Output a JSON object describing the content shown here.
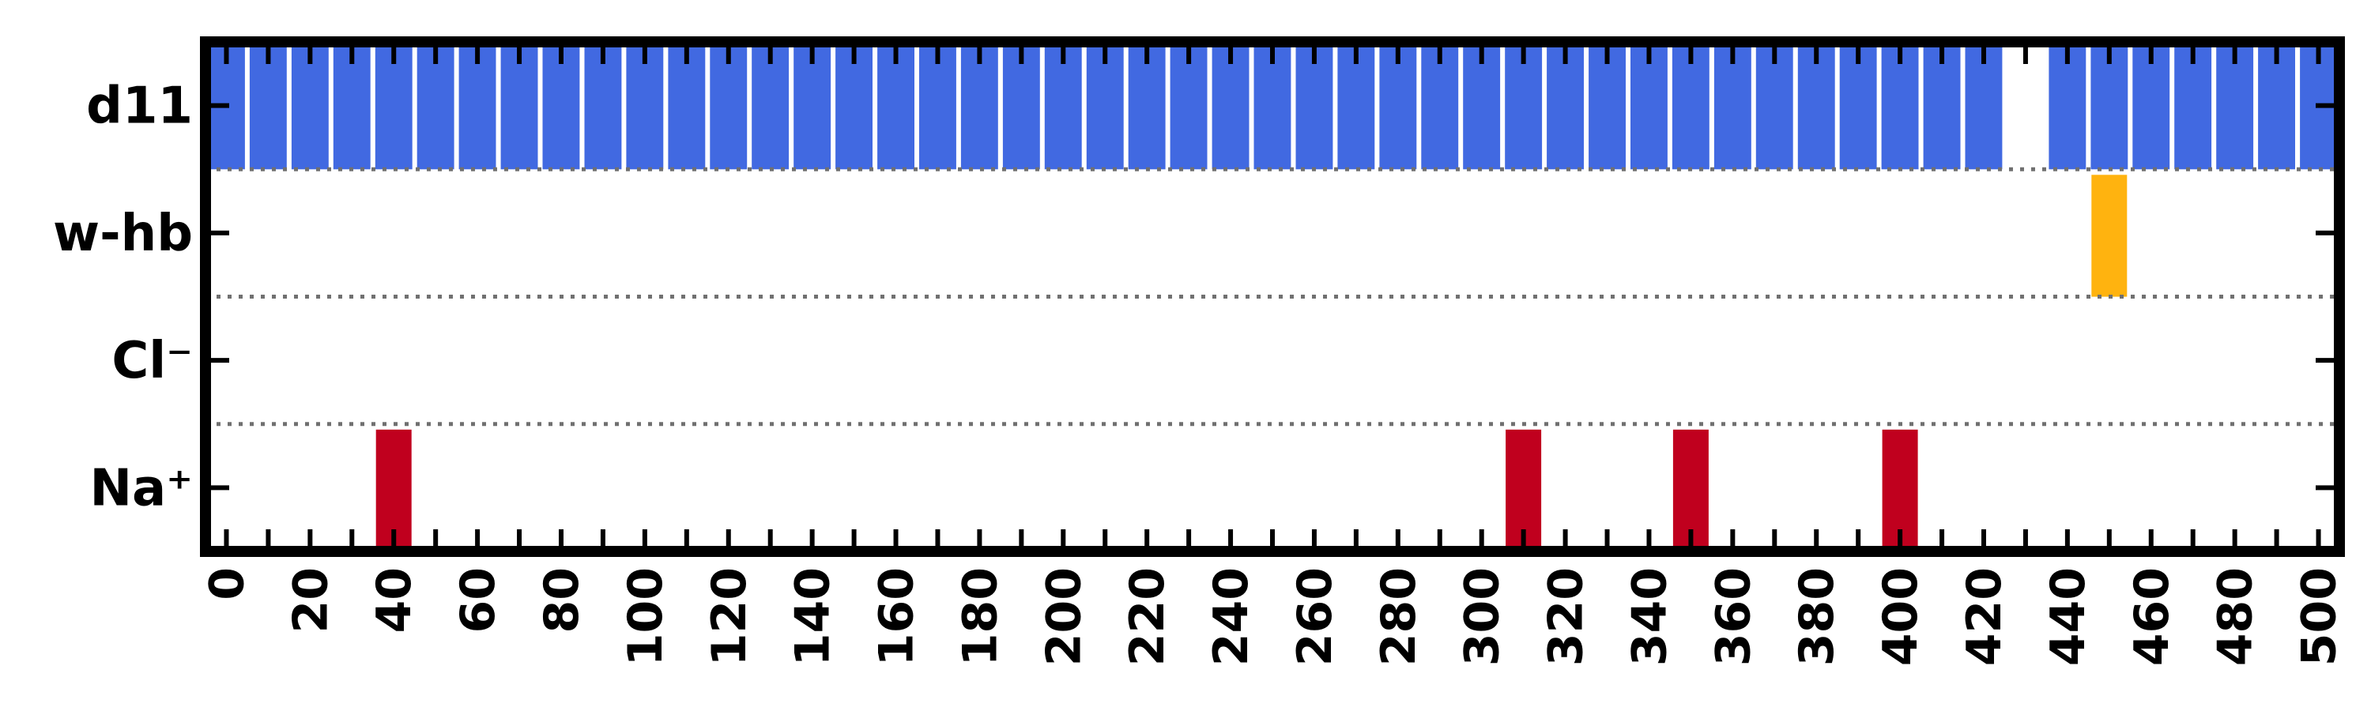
{
  "chart_data": {
    "type": "heatmap",
    "rows": [
      "d11",
      "w-hb",
      "Cl⁻",
      "Na⁺"
    ],
    "xlim": [
      -5,
      505
    ],
    "bin_width": 10,
    "x_ticks": [
      0,
      20,
      40,
      60,
      80,
      100,
      120,
      140,
      160,
      180,
      200,
      220,
      240,
      260,
      280,
      300,
      320,
      340,
      360,
      380,
      400,
      420,
      440,
      460,
      480,
      500
    ],
    "x_ticks_minor": [
      10,
      30,
      50,
      70,
      90,
      110,
      130,
      150,
      170,
      190,
      210,
      230,
      250,
      270,
      290,
      310,
      330,
      350,
      370,
      390,
      410,
      430,
      450,
      470,
      490
    ],
    "series": [
      {
        "row": "d11",
        "color": "#4169e1",
        "x": [
          0,
          10,
          20,
          30,
          40,
          50,
          60,
          70,
          80,
          90,
          100,
          110,
          120,
          130,
          140,
          150,
          160,
          170,
          180,
          190,
          200,
          210,
          220,
          230,
          240,
          250,
          260,
          270,
          280,
          290,
          300,
          310,
          320,
          330,
          340,
          350,
          360,
          370,
          380,
          390,
          400,
          410,
          420,
          440,
          450,
          460,
          470,
          480,
          490,
          500
        ]
      },
      {
        "row": "w-hb",
        "color": "#ffb30f",
        "x": [
          450
        ]
      },
      {
        "row": "Cl⁻",
        "color": "#c0001e",
        "x": []
      },
      {
        "row": "Na⁺",
        "color": "#c0001e",
        "x": [
          40,
          310,
          350,
          400
        ]
      }
    ],
    "title": "",
    "xlabel": "",
    "ylabel": "",
    "grid": "dotted row separators"
  }
}
